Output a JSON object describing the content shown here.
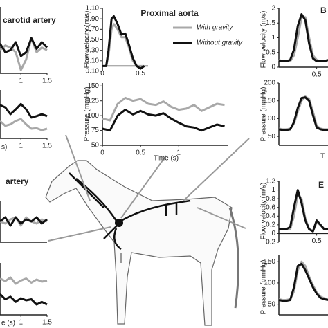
{
  "chart_data": [
    {
      "type": "line",
      "title": "carotid artery",
      "x": [
        0.6,
        0.7,
        0.8,
        0.9,
        1.0,
        1.1,
        1.2,
        1.3,
        1.4,
        1.5
      ],
      "xlim": [
        0.6,
        1.5
      ],
      "ylim": [
        0,
        1
      ],
      "xticks": [
        1,
        1.5
      ],
      "series": [
        {
          "color": "#a8a8a8",
          "values": [
            0.35,
            0.42,
            0.39,
            0.32,
            0.05,
            0.21,
            0.53,
            0.32,
            0.39,
            0.35
          ]
        },
        {
          "color": "#111111",
          "values": [
            0.45,
            0.32,
            0.35,
            0.47,
            0.26,
            0.32,
            0.53,
            0.37,
            0.47,
            0.39
          ]
        }
      ]
    },
    {
      "type": "line",
      "xlabel": "s)",
      "x": [
        0.6,
        0.7,
        0.8,
        0.9,
        1.0,
        1.1,
        1.2,
        1.3,
        1.4,
        1.5
      ],
      "xlim": [
        0.6,
        1.5
      ],
      "ylim": [
        0,
        1
      ],
      "xticks": [
        1,
        1.5
      ],
      "series": [
        {
          "color": "#a8a8a8",
          "values": [
            0.36,
            0.26,
            0.29,
            0.36,
            0.4,
            0.29,
            0.2,
            0.21,
            0.17,
            0.2
          ]
        },
        {
          "color": "#111111",
          "values": [
            0.69,
            0.64,
            0.5,
            0.6,
            0.71,
            0.6,
            0.43,
            0.46,
            0.5,
            0.46
          ]
        }
      ]
    },
    {
      "type": "line",
      "title": "artery",
      "x": [
        0.6,
        0.7,
        0.8,
        0.9,
        1.0,
        1.1,
        1.2,
        1.3,
        1.4,
        1.5
      ],
      "xlim": [
        0.6,
        1.5
      ],
      "ylim": [
        0,
        1
      ],
      "series": [
        {
          "color": "#a8a8a8",
          "values": [
            0.5,
            0.45,
            0.55,
            0.6,
            0.4,
            0.6,
            0.5,
            0.45,
            0.55,
            0.5
          ]
        },
        {
          "color": "#111111",
          "values": [
            0.5,
            0.6,
            0.4,
            0.6,
            0.45,
            0.55,
            0.5,
            0.6,
            0.45,
            0.55
          ]
        }
      ]
    },
    {
      "type": "line",
      "xlabel": "e (s)",
      "x": [
        0.6,
        0.7,
        0.8,
        0.9,
        1.0,
        1.1,
        1.2,
        1.3,
        1.4,
        1.5
      ],
      "xlim": [
        0.6,
        1.5
      ],
      "ylim": [
        0,
        1
      ],
      "xticks": [
        1,
        1.5
      ],
      "series": [
        {
          "color": "#a8a8a8",
          "values": [
            0.7,
            0.65,
            0.72,
            0.6,
            0.66,
            0.7,
            0.62,
            0.68,
            0.64,
            0.66
          ]
        },
        {
          "color": "#111111",
          "values": [
            0.4,
            0.3,
            0.35,
            0.25,
            0.32,
            0.28,
            0.3,
            0.2,
            0.25,
            0.2
          ]
        }
      ]
    },
    {
      "type": "line",
      "title": "Proximal aorta",
      "ylabel": "Flow velocity (m/s)",
      "x": [
        0,
        0.05,
        0.08,
        0.12,
        0.15,
        0.2,
        0.25,
        0.3,
        0.35,
        0.4,
        0.45,
        0.5,
        0.55
      ],
      "xlim": [
        0,
        0.6
      ],
      "ylim": [
        -0.1,
        1.1
      ],
      "xticks": [
        0,
        0.5
      ],
      "yticks": [
        {
          "value": -0.1,
          "label": "-0.10"
        },
        {
          "value": 0.1,
          "label": "0.10"
        },
        {
          "value": 0.3,
          "label": "0.30"
        },
        {
          "value": 0.5,
          "label": "0.50"
        },
        {
          "value": 0.7,
          "label": "0.70"
        },
        {
          "value": 0.9,
          "label": "0.90"
        },
        {
          "value": 1.1,
          "label": "1.10"
        }
      ],
      "series": [
        {
          "name": "With gravity",
          "color": "#a8a8a8",
          "values": [
            0,
            0,
            0.2,
            0.7,
            0.8,
            0.7,
            0.55,
            0.55,
            0.35,
            0.1,
            0,
            0,
            0
          ]
        },
        {
          "name": "Without gravity",
          "color": "#111111",
          "values": [
            0,
            0,
            0.3,
            0.9,
            0.95,
            0.8,
            0.6,
            0.62,
            0.4,
            0.15,
            0,
            -0.05,
            0
          ]
        }
      ]
    },
    {
      "type": "line",
      "ylabel": "Pressure (mmHg)",
      "xlabel": "Time (s)",
      "x": [
        0,
        0.1,
        0.2,
        0.3,
        0.4,
        0.5,
        0.6,
        0.7,
        0.8,
        0.9,
        1.0,
        1.1,
        1.2,
        1.3,
        1.4,
        1.5,
        1.6
      ],
      "xlim": [
        0,
        1.65
      ],
      "ylim": [
        50,
        155
      ],
      "xticks": [
        0,
        0.5,
        1
      ],
      "yticks": [
        50,
        75,
        100,
        125,
        150
      ],
      "series": [
        {
          "color": "#a8a8a8",
          "values": [
            95,
            92,
            120,
            130,
            125,
            128,
            120,
            118,
            124,
            115,
            110,
            112,
            118,
            108,
            114,
            120,
            118
          ]
        },
        {
          "color": "#111111",
          "values": [
            78,
            75,
            100,
            110,
            102,
            108,
            102,
            100,
            104,
            95,
            88,
            82,
            80,
            75,
            80,
            85,
            82
          ]
        }
      ]
    },
    {
      "type": "line",
      "title": "B",
      "ylabel": "Flow velocity (m/s)",
      "x": [
        0,
        0.05,
        0.1,
        0.15,
        0.2,
        0.25,
        0.3,
        0.35,
        0.4,
        0.45,
        0.5,
        0.55,
        0.6,
        0.65
      ],
      "xlim": [
        0,
        0.65
      ],
      "ylim": [
        0,
        2
      ],
      "xticks": [
        0.5
      ],
      "yticks": [
        0,
        0.5,
        1,
        1.5,
        2
      ],
      "series": [
        {
          "color": "#a8a8a8",
          "values": [
            0.25,
            0.2,
            0.2,
            0.2,
            0.4,
            1.0,
            1.7,
            1.7,
            1.0,
            0.4,
            0.25,
            0.2,
            0.2,
            0.2
          ]
        },
        {
          "color": "#111111",
          "values": [
            0.2,
            0.2,
            0.2,
            0.25,
            0.6,
            1.4,
            1.8,
            1.6,
            0.8,
            0.3,
            0.2,
            0.2,
            0.2,
            0.25
          ]
        }
      ]
    },
    {
      "type": "line",
      "ylabel": "Pressure (mmHg)",
      "xlabel": "T",
      "x": [
        0,
        0.05,
        0.1,
        0.15,
        0.2,
        0.25,
        0.3,
        0.35,
        0.4,
        0.45,
        0.5,
        0.55,
        0.6,
        0.65
      ],
      "xlim": [
        0,
        0.65
      ],
      "ylim": [
        25,
        200
      ],
      "yticks": [
        50,
        100,
        150,
        200
      ],
      "series": [
        {
          "color": "#a8a8a8",
          "values": [
            72,
            70,
            70,
            72,
            85,
            120,
            150,
            162,
            155,
            120,
            80,
            72,
            70,
            70
          ]
        },
        {
          "color": "#111111",
          "values": [
            70,
            68,
            68,
            70,
            90,
            130,
            158,
            160,
            150,
            110,
            75,
            70,
            68,
            68
          ]
        }
      ]
    },
    {
      "type": "line",
      "title": "E",
      "ylabel": "Flow velocity (m/s)",
      "x": [
        0,
        0.05,
        0.1,
        0.15,
        0.2,
        0.25,
        0.3,
        0.35,
        0.4,
        0.45,
        0.5,
        0.55,
        0.6,
        0.65
      ],
      "xlim": [
        0,
        0.65
      ],
      "ylim": [
        -0.2,
        1.2
      ],
      "xticks": [
        0.5
      ],
      "yticks": [
        -0.2,
        0,
        0.2,
        0.4,
        0.6,
        0.8,
        1,
        1.2
      ],
      "series": [
        {
          "color": "#a8a8a8",
          "values": [
            0.1,
            0.1,
            0.1,
            0.1,
            0.4,
            0.9,
            0.8,
            0.35,
            0.1,
            0.05,
            0.25,
            0.2,
            0.1,
            0.1
          ]
        },
        {
          "color": "#111111",
          "values": [
            0.1,
            0.1,
            0.1,
            0.15,
            0.6,
            1.0,
            0.7,
            0.3,
            0.1,
            0.05,
            0.3,
            0.2,
            0.1,
            0.1
          ]
        }
      ]
    },
    {
      "type": "line",
      "ylabel": "Pressure (mmHg)",
      "x": [
        0,
        0.05,
        0.1,
        0.15,
        0.2,
        0.25,
        0.3,
        0.35,
        0.4,
        0.45,
        0.5,
        0.55,
        0.6,
        0.65
      ],
      "xlim": [
        0,
        0.65
      ],
      "ylim": [
        25,
        165
      ],
      "yticks": [
        50,
        100,
        150
      ],
      "series": [
        {
          "color": "#a8a8a8",
          "values": [
            62,
            60,
            60,
            62,
            80,
            130,
            150,
            140,
            115,
            95,
            78,
            68,
            64,
            62
          ]
        },
        {
          "color": "#111111",
          "values": [
            60,
            58,
            58,
            60,
            90,
            140,
            145,
            130,
            110,
            90,
            75,
            65,
            62,
            60
          ]
        }
      ]
    }
  ]
}
